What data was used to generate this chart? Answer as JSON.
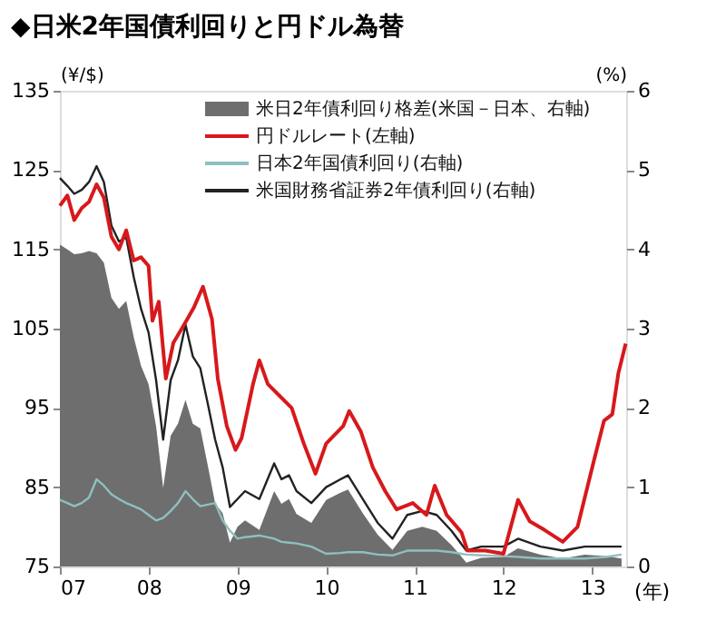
{
  "chart_data": {
    "type": "line",
    "title": "◆日米2年国債利回りと円ドル為替",
    "xlabel": "(年)",
    "ylabel": "(¥/$)",
    "y2label": "(%)",
    "xlim": [
      "2007-01-01",
      "2013-05-20"
    ],
    "xticks": [
      {
        "value": "2007-01-01",
        "label": "07"
      },
      {
        "value": "2008-01-01",
        "label": "08"
      },
      {
        "value": "2009-01-01",
        "label": "09"
      },
      {
        "value": "2010-01-01",
        "label": "10"
      },
      {
        "value": "2011-01-01",
        "label": "11"
      },
      {
        "value": "2012-01-01",
        "label": "12"
      },
      {
        "value": "2013-01-01",
        "label": "13"
      }
    ],
    "ylim": [
      75,
      135
    ],
    "yticks": [
      75,
      85,
      95,
      105,
      115,
      125,
      135
    ],
    "y2lim": [
      0,
      6
    ],
    "y2ticks": [
      0,
      1,
      2,
      3,
      4,
      5,
      6
    ],
    "grid": false,
    "legend": "top right",
    "series": [
      {
        "name": "米日2年債利回り格差(米国－日本、右軸)",
        "type": "area",
        "axis": "y2",
        "color": "#6e6e6e",
        "x": [
          "2007-01-01",
          "2007-02-01",
          "2007-03-01",
          "2007-04-01",
          "2007-05-01",
          "2007-06-01",
          "2007-07-01",
          "2007-08-01",
          "2007-09-01",
          "2007-10-01",
          "2007-11-01",
          "2007-12-01",
          "2008-01-01",
          "2008-02-01",
          "2008-03-01",
          "2008-04-01",
          "2008-05-01",
          "2008-06-01",
          "2008-07-01",
          "2008-08-01",
          "2008-09-01",
          "2008-10-01",
          "2008-11-01",
          "2008-12-01",
          "2009-01-01",
          "2009-02-01",
          "2009-04-01",
          "2009-06-01",
          "2009-07-01",
          "2009-08-01",
          "2009-09-01",
          "2009-11-01",
          "2010-01-01",
          "2010-03-01",
          "2010-04-01",
          "2010-06-01",
          "2010-08-01",
          "2010-10-01",
          "2010-12-01",
          "2011-02-01",
          "2011-04-01",
          "2011-06-01",
          "2011-08-01",
          "2011-10-01",
          "2012-01-01",
          "2012-03-01",
          "2012-06-01",
          "2012-09-01",
          "2012-12-01",
          "2013-03-01",
          "2013-05-01"
        ],
        "values": [
          4.06,
          4.0,
          3.94,
          3.95,
          3.98,
          3.95,
          3.83,
          3.39,
          3.25,
          3.35,
          2.89,
          2.53,
          2.3,
          1.77,
          0.99,
          1.65,
          1.8,
          2.1,
          1.8,
          1.74,
          1.27,
          0.8,
          0.67,
          0.3,
          0.5,
          0.58,
          0.46,
          0.95,
          0.79,
          0.85,
          0.66,
          0.55,
          0.84,
          0.93,
          0.97,
          0.67,
          0.4,
          0.21,
          0.45,
          0.5,
          0.45,
          0.27,
          0.05,
          0.11,
          0.12,
          0.23,
          0.15,
          0.1,
          0.15,
          0.13,
          0.1
        ]
      },
      {
        "name": "円ドルレート(左軸)",
        "color": "#d7191c",
        "x": [
          "2007-01-01",
          "2007-02-01",
          "2007-03-01",
          "2007-04-01",
          "2007-05-01",
          "2007-06-01",
          "2007-07-01",
          "2007-08-01",
          "2007-09-01",
          "2007-10-01",
          "2007-11-01",
          "2007-12-01",
          "2008-01-01",
          "2008-01-17",
          "2008-02-12",
          "2008-03-12",
          "2008-04-12",
          "2008-06-01",
          "2008-07-06",
          "2008-08-12",
          "2008-09-18",
          "2008-10-12",
          "2008-11-18",
          "2008-12-24",
          "2009-01-18",
          "2009-03-06",
          "2009-04-01",
          "2009-05-06",
          "2009-06-24",
          "2009-08-12",
          "2009-10-01",
          "2009-11-18",
          "2010-01-01",
          "2010-03-12",
          "2010-04-06",
          "2010-05-24",
          "2010-07-12",
          "2010-09-01",
          "2010-10-18",
          "2010-12-24",
          "2011-02-18",
          "2011-03-24",
          "2011-05-12",
          "2011-07-12",
          "2011-08-06",
          "2011-10-18",
          "2012-01-01",
          "2012-03-01",
          "2012-04-18",
          "2012-06-18",
          "2012-09-01",
          "2012-11-01",
          "2013-01-06",
          "2013-02-18",
          "2013-03-24",
          "2013-04-18",
          "2013-05-18"
        ],
        "values": [
          120.5,
          121.8,
          118.7,
          120.2,
          121,
          123.2,
          121.5,
          116.6,
          115,
          117.4,
          113.6,
          114,
          112.9,
          106,
          108.4,
          98.7,
          103.2,
          105.8,
          107.7,
          110.3,
          106.2,
          98.7,
          92.7,
          89.7,
          91.2,
          98,
          101,
          98,
          96.5,
          95,
          90.5,
          86.7,
          90.5,
          92.7,
          94.6,
          92,
          87.5,
          84.5,
          82.2,
          83,
          81.5,
          85.2,
          81.5,
          79.3,
          77,
          77,
          76.6,
          83.4,
          80.7,
          79.6,
          78.1,
          80,
          88.2,
          93.4,
          94.2,
          99.4,
          103.1
        ]
      },
      {
        "name": "日本2年国債利回り(右軸)",
        "axis": "y2",
        "color": "#8fbfbf",
        "x": [
          "2007-01-01",
          "2007-02-01",
          "2007-03-01",
          "2007-04-01",
          "2007-05-01",
          "2007-06-01",
          "2007-07-01",
          "2007-08-01",
          "2007-09-01",
          "2007-10-01",
          "2007-11-01",
          "2007-12-01",
          "2008-01-01",
          "2008-02-01",
          "2008-03-01",
          "2008-04-01",
          "2008-05-01",
          "2008-06-01",
          "2008-07-01",
          "2008-08-01",
          "2008-09-01",
          "2008-10-01",
          "2008-11-01",
          "2008-12-01",
          "2009-01-01",
          "2009-02-01",
          "2009-04-01",
          "2009-06-01",
          "2009-07-01",
          "2009-08-01",
          "2009-09-01",
          "2009-11-01",
          "2010-01-01",
          "2010-03-01",
          "2010-04-01",
          "2010-06-01",
          "2010-08-01",
          "2010-10-01",
          "2010-12-01",
          "2011-02-01",
          "2011-04-01",
          "2011-06-01",
          "2011-08-01",
          "2011-10-01",
          "2012-01-01",
          "2012-03-01",
          "2012-06-01",
          "2012-09-01",
          "2012-12-01",
          "2013-03-01",
          "2013-05-01"
        ],
        "values": [
          0.84,
          0.8,
          0.76,
          0.8,
          0.87,
          1.1,
          1.02,
          0.91,
          0.85,
          0.8,
          0.76,
          0.72,
          0.65,
          0.58,
          0.61,
          0.7,
          0.8,
          0.95,
          0.85,
          0.76,
          0.78,
          0.8,
          0.58,
          0.45,
          0.35,
          0.37,
          0.39,
          0.35,
          0.31,
          0.3,
          0.29,
          0.25,
          0.16,
          0.17,
          0.18,
          0.18,
          0.15,
          0.14,
          0.2,
          0.2,
          0.2,
          0.18,
          0.15,
          0.14,
          0.13,
          0.12,
          0.1,
          0.1,
          0.1,
          0.12,
          0.15
        ]
      },
      {
        "name": "米国財務省証券2年債利回り(右軸)",
        "axis": "y2",
        "color": "#222222",
        "x": [
          "2007-01-01",
          "2007-02-01",
          "2007-03-01",
          "2007-04-01",
          "2007-05-01",
          "2007-06-01",
          "2007-07-01",
          "2007-08-01",
          "2007-09-01",
          "2007-10-01",
          "2007-11-01",
          "2007-12-01",
          "2008-01-01",
          "2008-02-01",
          "2008-03-01",
          "2008-04-01",
          "2008-05-01",
          "2008-06-01",
          "2008-07-01",
          "2008-08-01",
          "2008-09-01",
          "2008-10-01",
          "2008-11-01",
          "2008-12-01",
          "2009-01-01",
          "2009-02-01",
          "2009-04-01",
          "2009-06-01",
          "2009-07-01",
          "2009-08-01",
          "2009-09-01",
          "2009-11-01",
          "2010-01-01",
          "2010-03-01",
          "2010-04-01",
          "2010-06-01",
          "2010-08-01",
          "2010-10-01",
          "2010-12-01",
          "2011-02-01",
          "2011-04-01",
          "2011-06-01",
          "2011-08-01",
          "2011-10-01",
          "2012-01-01",
          "2012-03-01",
          "2012-06-01",
          "2012-09-01",
          "2012-12-01",
          "2013-03-01",
          "2013-05-01"
        ],
        "values": [
          4.9,
          4.8,
          4.7,
          4.75,
          4.85,
          5.05,
          4.85,
          4.3,
          4.1,
          4.15,
          3.65,
          3.25,
          2.95,
          2.35,
          1.6,
          2.35,
          2.6,
          3.05,
          2.65,
          2.5,
          2.05,
          1.6,
          1.25,
          0.75,
          0.85,
          0.95,
          0.85,
          1.3,
          1.1,
          1.15,
          0.95,
          0.8,
          1.0,
          1.1,
          1.15,
          0.85,
          0.55,
          0.35,
          0.65,
          0.7,
          0.65,
          0.45,
          0.2,
          0.25,
          0.25,
          0.35,
          0.25,
          0.2,
          0.25,
          0.25,
          0.25
        ]
      }
    ]
  }
}
